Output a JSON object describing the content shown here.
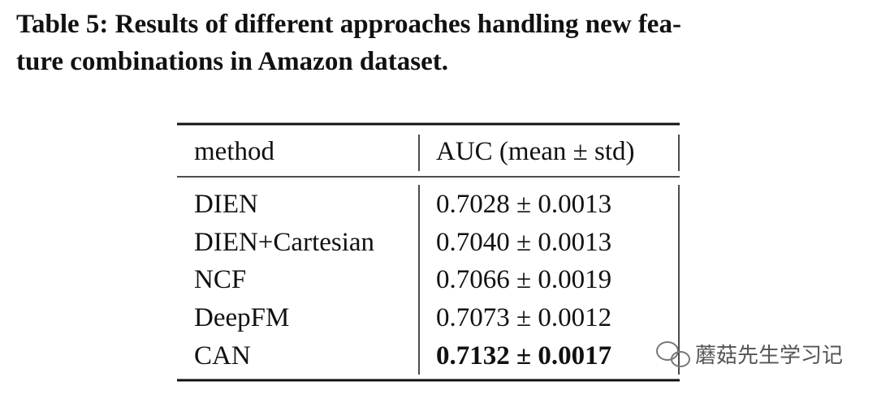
{
  "caption": {
    "lines": [
      "Table 5: Results of different approaches handling new fea-",
      "ture combinations in Amazon dataset."
    ]
  },
  "table": {
    "header": [
      "method",
      "AUC (mean ± std)"
    ],
    "rows": [
      [
        "DIEN",
        "0.7028 ± 0.0013"
      ],
      [
        "DIEN+Cartesian",
        "0.7040 ± 0.0013"
      ],
      [
        "NCF",
        "0.7066 ± 0.0019"
      ],
      [
        "DeepFM",
        "0.7073 ± 0.0012"
      ],
      [
        "CAN",
        "0.7132 ± 0.0017"
      ]
    ]
  },
  "watermark": "蘑菇先生学习记"
}
